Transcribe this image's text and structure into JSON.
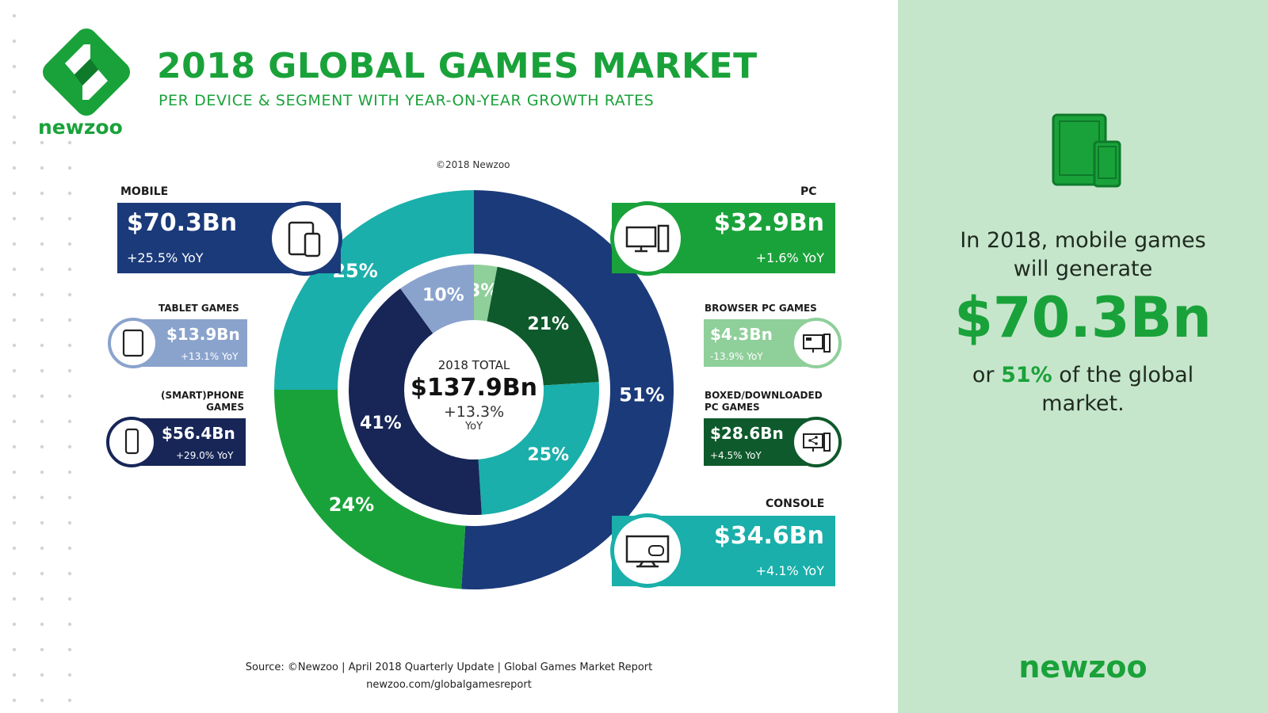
{
  "brand": {
    "name": "newzoo",
    "colors": {
      "green": "#1aa23a",
      "navy": "#1b3a7a",
      "teal": "#1aafaa"
    }
  },
  "header": {
    "title": "2018 GLOBAL GAMES MARKET",
    "subtitle": "PER DEVICE & SEGMENT WITH YEAR-ON-YEAR GROWTH RATES",
    "copyright": "©2018 Newzoo"
  },
  "segments": {
    "mobile": {
      "label": "MOBILE",
      "value": "$70.3Bn",
      "yoy": "+25.5% YoY",
      "icon": "tablet-phone-icon"
    },
    "tablet": {
      "label": "TABLET GAMES",
      "value": "$13.9Bn",
      "yoy": "+13.1% YoY",
      "icon": "tablet-icon"
    },
    "phone": {
      "label1": "(SMART)PHONE",
      "label2": "GAMES",
      "value": "$56.4Bn",
      "yoy": "+29.0% YoY",
      "icon": "phone-icon"
    },
    "pc": {
      "label": "PC",
      "value": "$32.9Bn",
      "yoy": "+1.6% YoY",
      "icon": "desktop-pc-icon"
    },
    "browser": {
      "label": "BROWSER PC GAMES",
      "value": "$4.3Bn",
      "yoy": "-13.9% YoY",
      "icon": "browser-pc-icon"
    },
    "boxed": {
      "label1": "BOXED/DOWNLOADED",
      "label2": "PC GAMES",
      "value": "$28.6Bn",
      "yoy": "+4.5% YoY",
      "icon": "download-pc-icon"
    },
    "console": {
      "label": "CONSOLE",
      "value": "$34.6Bn",
      "yoy": "+4.1% YoY",
      "icon": "console-tv-icon"
    }
  },
  "center": {
    "label": "2018 TOTAL",
    "value": "$137.9Bn",
    "growth": "+13.3%",
    "yoy": "YoY"
  },
  "footer": {
    "source": "Source: ©Newzoo | April 2018 Quarterly Update | Global Games Market Report",
    "url": "newzoo.com/globalgamesreport"
  },
  "sidebar": {
    "line1": "In 2018, mobile games",
    "line2": "will generate",
    "big": "$70.3Bn",
    "or": "or",
    "pct": "51%",
    "of": "of the global",
    "market": "market."
  },
  "chart_data": {
    "type": "pie",
    "outer": [
      {
        "name": "Mobile",
        "value": 51,
        "label": "51%",
        "color": "#1b3a7a"
      },
      {
        "name": "PC",
        "value": 24,
        "label": "24%",
        "color": "#1aa23a"
      },
      {
        "name": "Console",
        "value": 25,
        "label": "25%",
        "color": "#1aafaa"
      }
    ],
    "inner": [
      {
        "name": "Browser PC Games",
        "value": 3,
        "label": "3%",
        "color": "#8fcf9a"
      },
      {
        "name": "Boxed/Downloaded PC Games",
        "value": 21,
        "label": "21%",
        "color": "#0f5a2c"
      },
      {
        "name": "Console",
        "value": 25,
        "label": "25%",
        "color": "#1aafaa"
      },
      {
        "name": "(Smart)phone Games",
        "value": 41,
        "label": "41%",
        "color": "#172657"
      },
      {
        "name": "Tablet Games",
        "value": 10,
        "label": "10%",
        "color": "#8aa3cd"
      }
    ]
  }
}
